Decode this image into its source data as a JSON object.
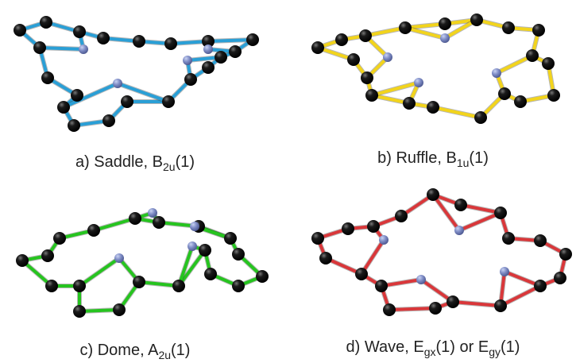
{
  "panels": [
    {
      "caption": [
        "a) Saddle, B",
        "2u",
        "(1)"
      ]
    },
    {
      "caption": [
        "b) Ruffle, B",
        "1u",
        "(1)"
      ]
    },
    {
      "caption": [
        "c) Dome, A",
        "2u",
        "(1)"
      ]
    },
    {
      "caption": [
        "d) Wave, E",
        "gx",
        "(1) or E",
        "gy",
        "(1)"
      ]
    }
  ]
}
